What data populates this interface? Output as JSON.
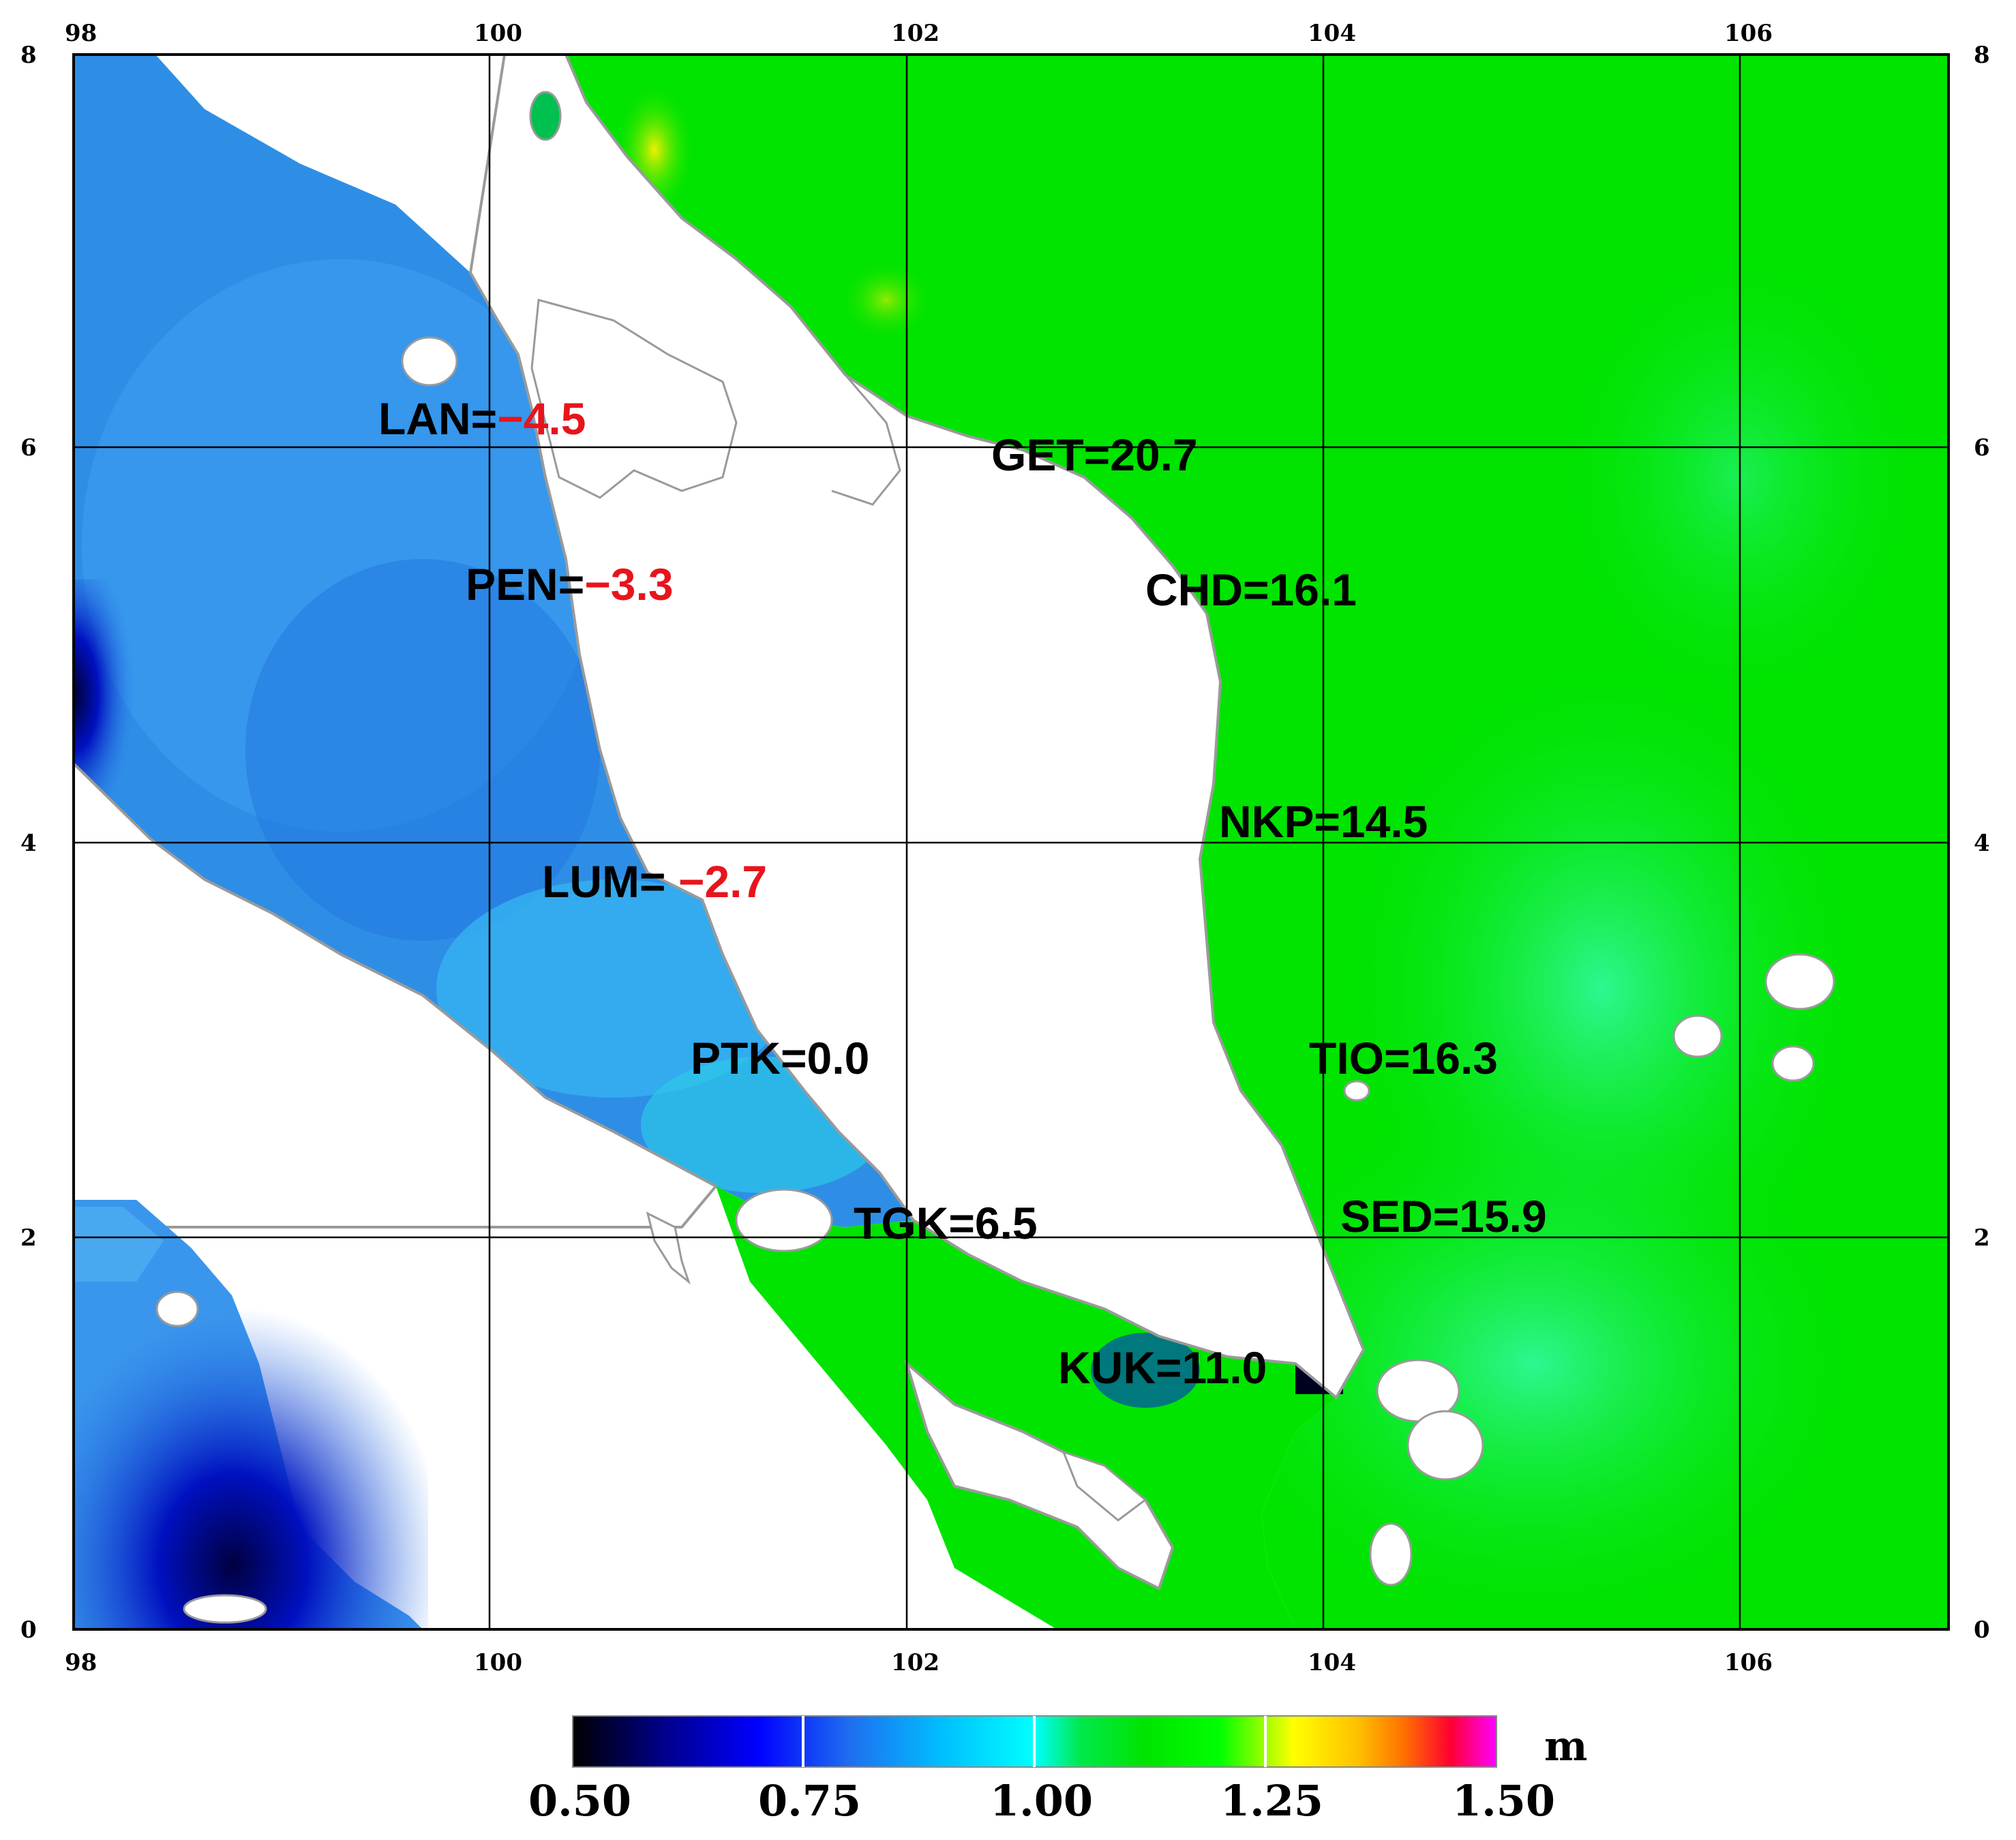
{
  "map": {
    "lon_ticks_top": [
      "98",
      "100",
      "102",
      "104",
      "106"
    ],
    "lon_ticks_bottom": [
      "98",
      "100",
      "102",
      "104",
      "106"
    ],
    "lat_ticks_left": [
      "8",
      "6",
      "4",
      "2",
      "0"
    ],
    "lat_ticks_right": [
      "8",
      "6",
      "4",
      "2",
      "0"
    ],
    "lon_range": [
      98,
      107
    ],
    "lat_range": [
      0,
      8
    ]
  },
  "stations": [
    {
      "id": "lan",
      "name": "LAN=",
      "value": "−4.5",
      "lon": 100.0,
      "lat": 6.1,
      "value_color": "#e8141c"
    },
    {
      "id": "pen",
      "name": "PEN=",
      "value": "−3.3",
      "lon": 100.4,
      "lat": 5.3,
      "value_color": "#e8141c"
    },
    {
      "id": "lum",
      "name": "LUM= ",
      "value": "−2.7",
      "lon": 100.7,
      "lat": 3.85,
      "value_color": "#e8141c"
    },
    {
      "id": "ptk",
      "name": "PTK=",
      "value": "0.0",
      "lon": 101.1,
      "lat": 2.9,
      "value_color": "#000000"
    },
    {
      "id": "tgk",
      "name": "TGK=",
      "value": "6.5",
      "lon": 101.9,
      "lat": 2.05,
      "value_color": "#000000"
    },
    {
      "id": "kuk",
      "name": "KUK=",
      "value": "11.0",
      "lon": 102.8,
      "lat": 1.3,
      "value_color": "#000000"
    },
    {
      "id": "get",
      "name": "GET=",
      "value": "20.7",
      "lon": 102.5,
      "lat": 6.0,
      "value_color": "#000000"
    },
    {
      "id": "chd",
      "name": "CHD=",
      "value": "16.1",
      "lon": 103.2,
      "lat": 5.25,
      "value_color": "#000000"
    },
    {
      "id": "nkp",
      "name": "NKP=",
      "value": "14.5",
      "lon": 103.5,
      "lat": 4.05,
      "value_color": "#000000"
    },
    {
      "id": "tio",
      "name": "TIO=",
      "value": "16.3",
      "lon": 104.0,
      "lat": 2.9,
      "value_color": "#000000"
    },
    {
      "id": "sed",
      "name": "SED=",
      "value": "15.9",
      "lon": 104.1,
      "lat": 2.1,
      "value_color": "#000000"
    }
  ],
  "colorbar": {
    "ticks": [
      "0.50",
      "0.75",
      "1.00",
      "1.25",
      "1.50"
    ],
    "unit": "m",
    "colors": [
      "#000000",
      "#0000ff",
      "#00bfff",
      "#00ffff",
      "#00e400",
      "#00ff00",
      "#ffff00",
      "#ff8000",
      "#ff0000",
      "#ff00ff"
    ]
  }
}
